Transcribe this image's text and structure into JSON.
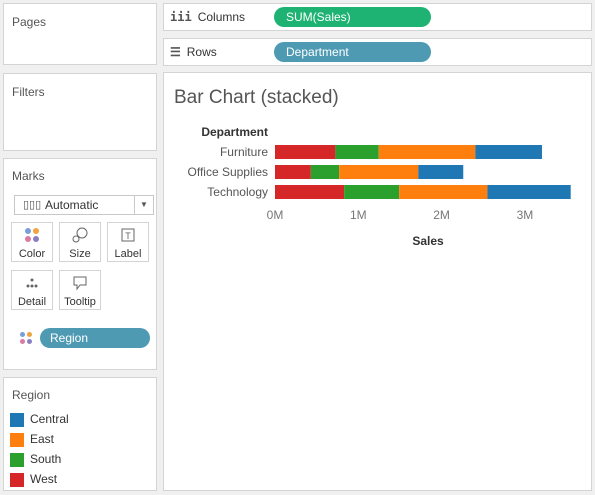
{
  "pages": {
    "title": "Pages"
  },
  "filters": {
    "title": "Filters"
  },
  "marks": {
    "title": "Marks",
    "mark_type": "Automatic",
    "buttons": [
      "Color",
      "Size",
      "Label",
      "Detail",
      "Tooltip"
    ],
    "color_pill": "Region"
  },
  "legend": {
    "title": "Region",
    "items": [
      {
        "label": "Central",
        "color": "#1f77b4"
      },
      {
        "label": "East",
        "color": "#ff7f0e"
      },
      {
        "label": "South",
        "color": "#2ca02c"
      },
      {
        "label": "West",
        "color": "#d62728"
      }
    ]
  },
  "columns_shelf": {
    "label": "Columns",
    "pill": "SUM(Sales)",
    "pill_color": "#1eb373"
  },
  "rows_shelf": {
    "label": "Rows",
    "pill": "Department",
    "pill_color": "#4e9ab3"
  },
  "chart_data": {
    "type": "bar",
    "title": "Bar Chart (stacked)",
    "orientation": "horizontal",
    "stacked": true,
    "row_header": "Department",
    "xlabel": "Sales",
    "categories": [
      "Furniture",
      "Office Supplies",
      "Technology"
    ],
    "x_ticks": [
      "0M",
      "1M",
      "2M",
      "3M"
    ],
    "xlim": [
      0,
      3600000
    ],
    "series": [
      {
        "name": "West",
        "color": "#d62728",
        "values": [
          725000,
          430000,
          830000
        ]
      },
      {
        "name": "South",
        "color": "#2ca02c",
        "values": [
          520000,
          340000,
          660000
        ]
      },
      {
        "name": "East",
        "color": "#ff7f0e",
        "values": [
          1160000,
          950000,
          1060000
        ]
      },
      {
        "name": "Central",
        "color": "#1f77b4",
        "values": [
          800000,
          540000,
          1000000
        ]
      }
    ]
  }
}
